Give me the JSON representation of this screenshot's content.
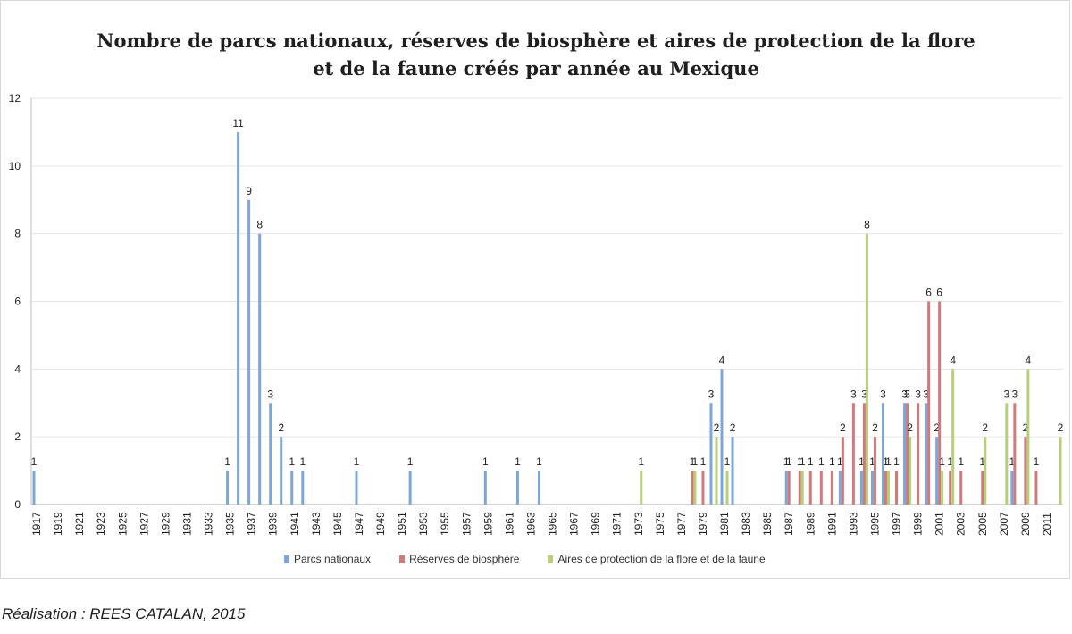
{
  "chart_data": {
    "type": "bar",
    "title": "Nombre de parcs nationaux, réserves de biosphère et aires de protection de la flore et de la faune créés par année au Mexique",
    "x_start": 1917,
    "x_end": 2012,
    "x_tick_labels": [
      "1917",
      "1919",
      "1921",
      "1923",
      "1925",
      "1927",
      "1929",
      "1931",
      "1933",
      "1935",
      "1937",
      "1939",
      "1941",
      "1943",
      "1945",
      "1947",
      "1949",
      "1951",
      "1953",
      "1955",
      "1957",
      "1959",
      "1961",
      "1963",
      "1965",
      "1967",
      "1969",
      "1971",
      "1973",
      "1975",
      "1977",
      "1979",
      "1981",
      "1983",
      "1985",
      "1987",
      "1989",
      "1991",
      "1993",
      "1995",
      "1997",
      "1999",
      "2001",
      "2003",
      "2005",
      "2007",
      "2009",
      "2011"
    ],
    "ylim": [
      0,
      12
    ],
    "y_ticks": [
      "0",
      "2",
      "4",
      "6",
      "8",
      "10",
      "12"
    ],
    "grid": true,
    "legend_position": "bottom",
    "series": [
      {
        "name": "Parcs nationaux",
        "color": "#7ea6d8",
        "points": [
          [
            1917,
            1
          ],
          [
            1935,
            1
          ],
          [
            1936,
            11
          ],
          [
            1937,
            9
          ],
          [
            1938,
            8
          ],
          [
            1939,
            3
          ],
          [
            1940,
            2
          ],
          [
            1941,
            1
          ],
          [
            1942,
            1
          ],
          [
            1947,
            1
          ],
          [
            1952,
            1
          ],
          [
            1959,
            1
          ],
          [
            1962,
            1
          ],
          [
            1964,
            1
          ],
          [
            1980,
            3
          ],
          [
            1981,
            4
          ],
          [
            1982,
            2
          ],
          [
            1987,
            1
          ],
          [
            1992,
            1
          ],
          [
            1994,
            1
          ],
          [
            1995,
            1
          ],
          [
            1996,
            3
          ],
          [
            1998,
            3
          ],
          [
            2000,
            3
          ],
          [
            2001,
            2
          ],
          [
            2008,
            1
          ]
        ]
      },
      {
        "name": "Réserves de biosphère",
        "color": "#d07b7b",
        "points": [
          [
            1978,
            1
          ],
          [
            1979,
            1
          ],
          [
            1987,
            1
          ],
          [
            1988,
            1
          ],
          [
            1989,
            1
          ],
          [
            1990,
            1
          ],
          [
            1991,
            1
          ],
          [
            1992,
            2
          ],
          [
            1993,
            3
          ],
          [
            1994,
            3
          ],
          [
            1995,
            2
          ],
          [
            1996,
            1
          ],
          [
            1997,
            1
          ],
          [
            1998,
            3
          ],
          [
            1999,
            3
          ],
          [
            2000,
            6
          ],
          [
            2001,
            6
          ],
          [
            2002,
            1
          ],
          [
            2003,
            1
          ],
          [
            2005,
            1
          ],
          [
            2008,
            3
          ],
          [
            2009,
            2
          ],
          [
            2010,
            1
          ]
        ]
      },
      {
        "name": "Aires de protection de la flore et de la faune",
        "color": "#b5cf7a",
        "points": [
          [
            1973,
            1
          ],
          [
            1978,
            1
          ],
          [
            1980,
            2
          ],
          [
            1981,
            1
          ],
          [
            1988,
            1
          ],
          [
            1994,
            8
          ],
          [
            1996,
            1
          ],
          [
            1998,
            2
          ],
          [
            2001,
            1
          ],
          [
            2002,
            4
          ],
          [
            2005,
            2
          ],
          [
            2007,
            3
          ],
          [
            2009,
            4
          ],
          [
            2012,
            2
          ]
        ]
      }
    ],
    "footer": "Réalisation : REES CATALAN, 2015"
  }
}
